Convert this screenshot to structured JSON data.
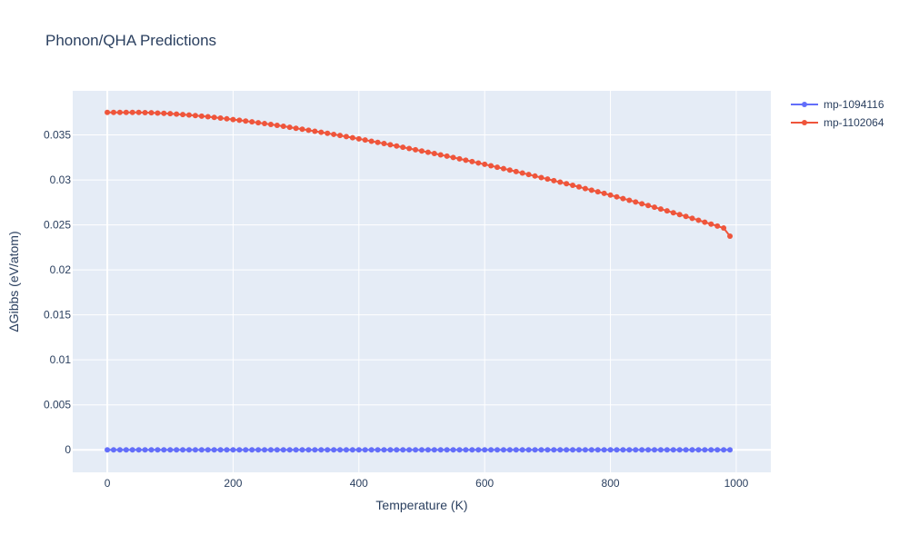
{
  "chart_data": {
    "type": "line",
    "title": "Phonon/QHA Predictions",
    "xlabel": "Temperature (K)",
    "ylabel": "ΔGibbs (eV/atom)",
    "xlim": [
      -55,
      1055
    ],
    "ylim": [
      -0.0025,
      0.0399
    ],
    "x_ticks": [
      0,
      200,
      400,
      600,
      800,
      1000
    ],
    "x_tick_labels": [
      "0",
      "200",
      "400",
      "600",
      "800",
      "1000"
    ],
    "y_ticks": [
      0,
      0.005,
      0.01,
      0.015,
      0.02,
      0.025,
      0.03,
      0.035
    ],
    "y_tick_labels": [
      "0",
      "0.005",
      "0.01",
      "0.015",
      "0.02",
      "0.025",
      "0.03",
      "0.035"
    ],
    "grid": true,
    "legend_position": "top-right",
    "x": [
      0,
      10,
      20,
      30,
      40,
      50,
      60,
      70,
      80,
      90,
      100,
      110,
      120,
      130,
      140,
      150,
      160,
      170,
      180,
      190,
      200,
      210,
      220,
      230,
      240,
      250,
      260,
      270,
      280,
      290,
      300,
      310,
      320,
      330,
      340,
      350,
      360,
      370,
      380,
      390,
      400,
      410,
      420,
      430,
      440,
      450,
      460,
      470,
      480,
      490,
      500,
      510,
      520,
      530,
      540,
      550,
      560,
      570,
      580,
      590,
      600,
      610,
      620,
      630,
      640,
      650,
      660,
      670,
      680,
      690,
      700,
      710,
      720,
      730,
      740,
      750,
      760,
      770,
      780,
      790,
      800,
      810,
      820,
      830,
      840,
      850,
      860,
      870,
      880,
      890,
      900,
      910,
      920,
      930,
      940,
      950,
      960,
      970,
      980,
      990
    ],
    "series": [
      {
        "name": "mp-1094116",
        "color": "#636efa",
        "values": [
          0,
          0,
          0,
          0,
          0,
          0,
          0,
          0,
          0,
          0,
          0,
          0,
          0,
          0,
          0,
          0,
          0,
          0,
          0,
          0,
          0,
          0,
          0,
          0,
          0,
          0,
          0,
          0,
          0,
          0,
          0,
          0,
          0,
          0,
          0,
          0,
          0,
          0,
          0,
          0,
          0,
          0,
          0,
          0,
          0,
          0,
          0,
          0,
          0,
          0,
          0,
          0,
          0,
          0,
          0,
          0,
          0,
          0,
          0,
          0,
          0,
          0,
          0,
          0,
          0,
          0,
          0,
          0,
          0,
          0,
          0,
          0,
          0,
          0,
          0,
          0,
          0,
          0,
          0,
          0,
          0,
          0,
          0,
          0,
          0,
          0,
          0,
          0,
          0,
          0,
          0,
          0,
          0,
          0,
          0,
          0,
          0,
          0,
          0,
          0
        ]
      },
      {
        "name": "mp-1102064",
        "color": "#ef553b",
        "values": [
          0.0375,
          0.0375,
          0.0375,
          0.0375,
          0.0375,
          0.0375,
          0.03748,
          0.03746,
          0.03743,
          0.0374,
          0.03736,
          0.03731,
          0.03726,
          0.03721,
          0.03715,
          0.03708,
          0.03702,
          0.03695,
          0.03687,
          0.03679,
          0.03671,
          0.03663,
          0.03654,
          0.03645,
          0.03636,
          0.03626,
          0.03616,
          0.03606,
          0.03596,
          0.03585,
          0.03574,
          0.03563,
          0.03552,
          0.03541,
          0.03529,
          0.03518,
          0.03506,
          0.03494,
          0.03481,
          0.03469,
          0.03456,
          0.03443,
          0.0343,
          0.03417,
          0.03404,
          0.03391,
          0.03377,
          0.03363,
          0.03349,
          0.03335,
          0.03321,
          0.03307,
          0.03293,
          0.03278,
          0.03264,
          0.03249,
          0.03234,
          0.03219,
          0.03204,
          0.03188,
          0.03173,
          0.03157,
          0.03141,
          0.03125,
          0.03109,
          0.03093,
          0.03076,
          0.0306,
          0.03043,
          0.03026,
          0.03009,
          0.02992,
          0.02975,
          0.02958,
          0.0294,
          0.02922,
          0.02904,
          0.02886,
          0.02868,
          0.0285,
          0.02831,
          0.02812,
          0.02793,
          0.02774,
          0.02755,
          0.02735,
          0.02716,
          0.02696,
          0.02676,
          0.02656,
          0.02635,
          0.02615,
          0.02594,
          0.02573,
          0.02552,
          0.0253,
          0.02509,
          0.02487,
          0.02465,
          0.02375
        ]
      }
    ]
  }
}
